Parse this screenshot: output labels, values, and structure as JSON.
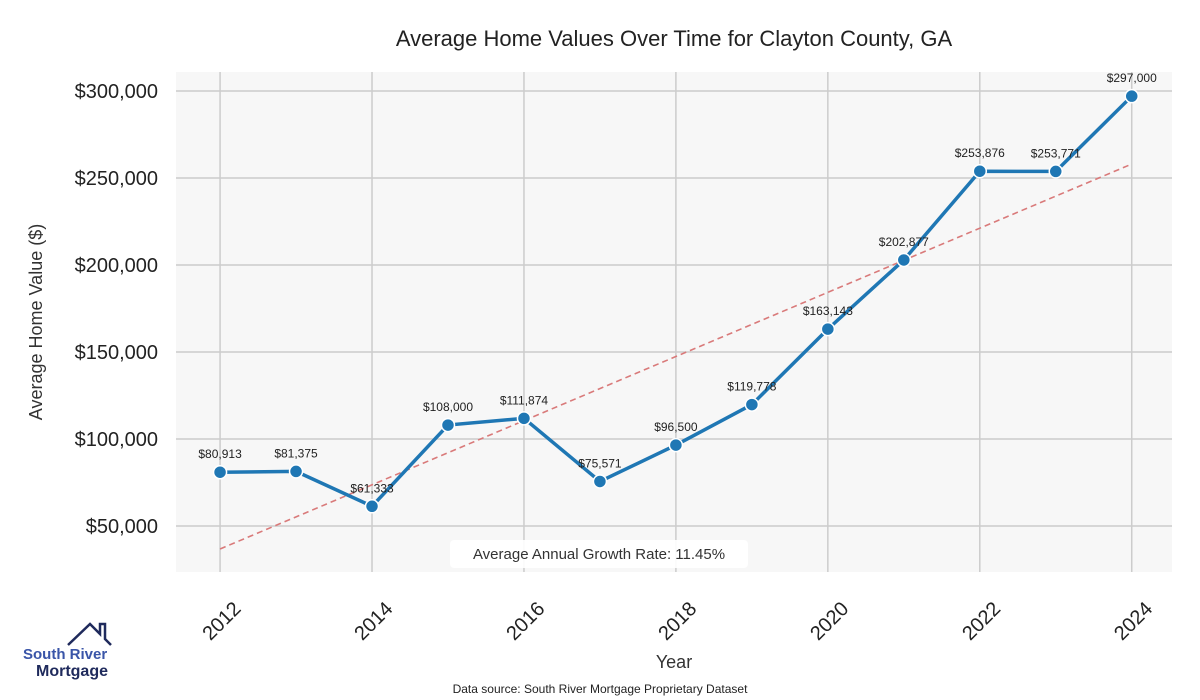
{
  "chart_data": {
    "type": "line",
    "title": "Average Home Values Over Time for Clayton County, GA",
    "xlabel": "Year",
    "ylabel": "Average Home Value ($)",
    "x": [
      2012,
      2013,
      2014,
      2015,
      2016,
      2017,
      2018,
      2019,
      2020,
      2021,
      2022,
      2023,
      2024
    ],
    "values": [
      80913,
      81375,
      61333,
      108000,
      111874,
      75571,
      96500,
      119778,
      163143,
      202877,
      253876,
      253771,
      297000
    ],
    "data_labels": [
      "$80,913",
      "$81,375",
      "$61,333",
      "$108,000",
      "$111,874",
      "$75,571",
      "$96,500",
      "$119,778",
      "$163,143",
      "$202,877",
      "$253,876",
      "$253,771",
      "$297,000"
    ],
    "xticks": [
      2012,
      2014,
      2016,
      2018,
      2020,
      2022,
      2024
    ],
    "xtick_labels": [
      "2012",
      "2014",
      "2016",
      "2018",
      "2020",
      "2022",
      "2024"
    ],
    "yticks": [
      50000,
      100000,
      150000,
      200000,
      250000,
      300000
    ],
    "ytick_labels": [
      "$50,000",
      "$100,000",
      "$150,000",
      "$200,000",
      "$250,000",
      "$300,000"
    ],
    "xlim": [
      2011.42,
      2024.53
    ],
    "ylim": [
      23560,
      310900
    ],
    "grid": true,
    "trend": {
      "x": [
        2012,
        2024
      ],
      "y": [
        36800,
        258000
      ],
      "color": "#d97a7a",
      "style": "dashed"
    },
    "series_color": "#1f77b4",
    "annotation": "Average Annual Growth Rate: 11.45%",
    "source": "Data source: South River Mortgage Proprietary Dataset"
  },
  "logo": {
    "line1": "South River",
    "line2": "Mortgage"
  }
}
